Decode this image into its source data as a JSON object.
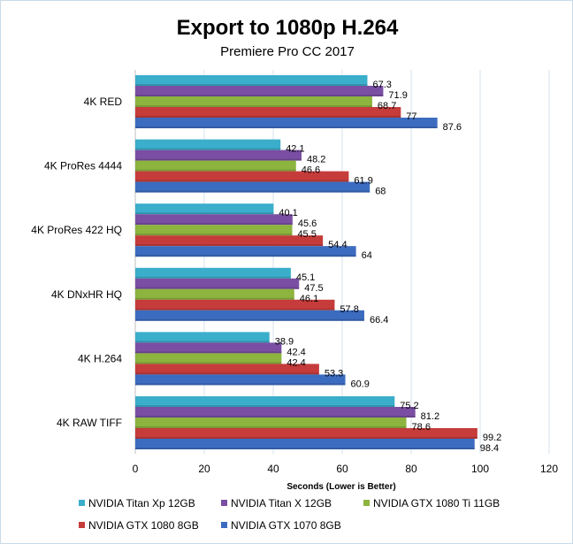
{
  "chart_data": {
    "type": "bar",
    "orientation": "horizontal",
    "title": "Export to 1080p H.264",
    "subtitle": "Premiere Pro CC 2017",
    "xlabel": "Seconds  (Lower is Better)",
    "ylabel": "",
    "xlim": [
      0,
      120
    ],
    "xticks": [
      "0",
      "20",
      "40",
      "60",
      "80",
      "100",
      "120"
    ],
    "grid": true,
    "legend_position": "bottom",
    "categories": [
      "4K RED",
      "4K ProRes 4444",
      "4K ProRes 422 HQ",
      "4K DNxHR HQ",
      "4K H.264",
      "4K RAW TIFF"
    ],
    "series": [
      {
        "name": "NVIDIA Titan Xp 12GB",
        "color": "#3aaecb",
        "values": [
          67.3,
          42.1,
          40.1,
          45.1,
          38.9,
          75.2
        ]
      },
      {
        "name": "NVIDIA Titan X 12GB",
        "color": "#7a4fa3",
        "values": [
          71.9,
          48.2,
          45.6,
          47.5,
          42.4,
          81.2
        ]
      },
      {
        "name": "NVIDIA GTX 1080 Ti 11GB",
        "color": "#8cb43e",
        "values": [
          68.7,
          46.6,
          45.5,
          46.1,
          42.4,
          78.6
        ]
      },
      {
        "name": "NVIDIA GTX 1080 8GB",
        "color": "#c53c3b",
        "values": [
          77,
          61.9,
          54.4,
          57.8,
          53.3,
          99.2
        ]
      },
      {
        "name": "NVIDIA GTX 1070 8GB",
        "color": "#3c6cc0",
        "values": [
          87.6,
          68,
          64,
          66.4,
          60.9,
          98.4
        ]
      }
    ]
  }
}
